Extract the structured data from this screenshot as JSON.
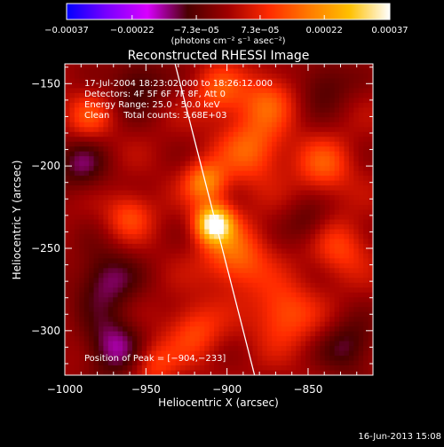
{
  "chart_data": {
    "type": "heatmap",
    "title": "Reconstructed RHESSI Image",
    "xlabel": "Heliocentric X (arcsec)",
    "ylabel": "Heliocentric Y (arcsec)",
    "xlim": [
      -1000,
      -810
    ],
    "ylim": [
      -327,
      -138
    ],
    "x_ticks": [
      -1000,
      -950,
      -900,
      -850
    ],
    "y_ticks": [
      -150,
      -200,
      -250,
      -300
    ],
    "x_tick_labels": [
      "−1000",
      "−950",
      "−900",
      "−850"
    ],
    "y_tick_labels": [
      "−150",
      "−200",
      "−250",
      "−300"
    ],
    "colorbar": {
      "ticks": [
        -0.00037,
        -0.00022,
        -7.3e-05,
        7.3e-05,
        0.00022,
        0.00037
      ],
      "tick_labels": [
        "−0.00037",
        "−0.00022",
        "−7.3e−05",
        "7.3e−05",
        "0.00022",
        "0.00037"
      ],
      "range": [
        -0.00037,
        0.00037
      ],
      "colors": [
        "#0000ff",
        "#7a00ff",
        "#d800ff",
        "#4a0000",
        "#a00000",
        "#ff2a00",
        "#ff7a00",
        "#ffc000",
        "#ffffff"
      ]
    },
    "annotations": [
      "17-Jul-2004 18:23:02.000 to 18:26:12.000",
      "Detectors: 4F 5F 6F 7F 8F, Att 0",
      "Energy Range: 25.0 - 50.0 keV",
      "Clean     Total counts: 3.68E+03"
    ],
    "peak_label": "Position of Peak = [−904,−233]",
    "peak": [
      -904,
      -233
    ],
    "limb_line": [
      [
        -932,
        -138
      ],
      [
        -883,
        -327
      ]
    ],
    "sources": [
      {
        "x": -908,
        "y": -235,
        "amp": 1.0,
        "s": 8
      },
      {
        "x": -913,
        "y": -210,
        "amp": 0.55,
        "s": 9
      },
      {
        "x": -895,
        "y": -255,
        "amp": 0.45,
        "s": 14
      },
      {
        "x": -885,
        "y": -190,
        "amp": 0.42,
        "s": 14
      },
      {
        "x": -865,
        "y": -290,
        "amp": 0.38,
        "s": 14
      },
      {
        "x": -875,
        "y": -160,
        "amp": 0.35,
        "s": 12
      },
      {
        "x": -840,
        "y": -200,
        "amp": 0.35,
        "s": 12
      },
      {
        "x": -830,
        "y": -250,
        "amp": 0.3,
        "s": 12
      },
      {
        "x": -960,
        "y": -230,
        "amp": 0.32,
        "s": 10
      },
      {
        "x": -985,
        "y": -170,
        "amp": 0.3,
        "s": 10
      },
      {
        "x": -920,
        "y": -300,
        "amp": 0.32,
        "s": 12
      },
      {
        "x": -945,
        "y": -320,
        "amp": 0.3,
        "s": 10
      },
      {
        "x": -905,
        "y": -155,
        "amp": 0.35,
        "s": 11
      },
      {
        "x": -975,
        "y": -270,
        "amp": -0.35,
        "s": 14
      },
      {
        "x": -970,
        "y": -310,
        "amp": -0.4,
        "s": 13
      },
      {
        "x": -990,
        "y": -200,
        "amp": -0.3,
        "s": 12
      },
      {
        "x": -955,
        "y": -150,
        "amp": -0.3,
        "s": 12
      },
      {
        "x": -825,
        "y": -310,
        "amp": -0.3,
        "s": 12
      },
      {
        "x": -840,
        "y": -150,
        "amp": -0.25,
        "s": 12
      },
      {
        "x": -850,
        "y": -235,
        "amp": -0.2,
        "s": 10
      }
    ]
  },
  "footer": {
    "timestamp": "16-Jun-2013 15:08"
  },
  "colorbar_unit": "(photons cm⁻² s⁻¹ asec⁻²)"
}
